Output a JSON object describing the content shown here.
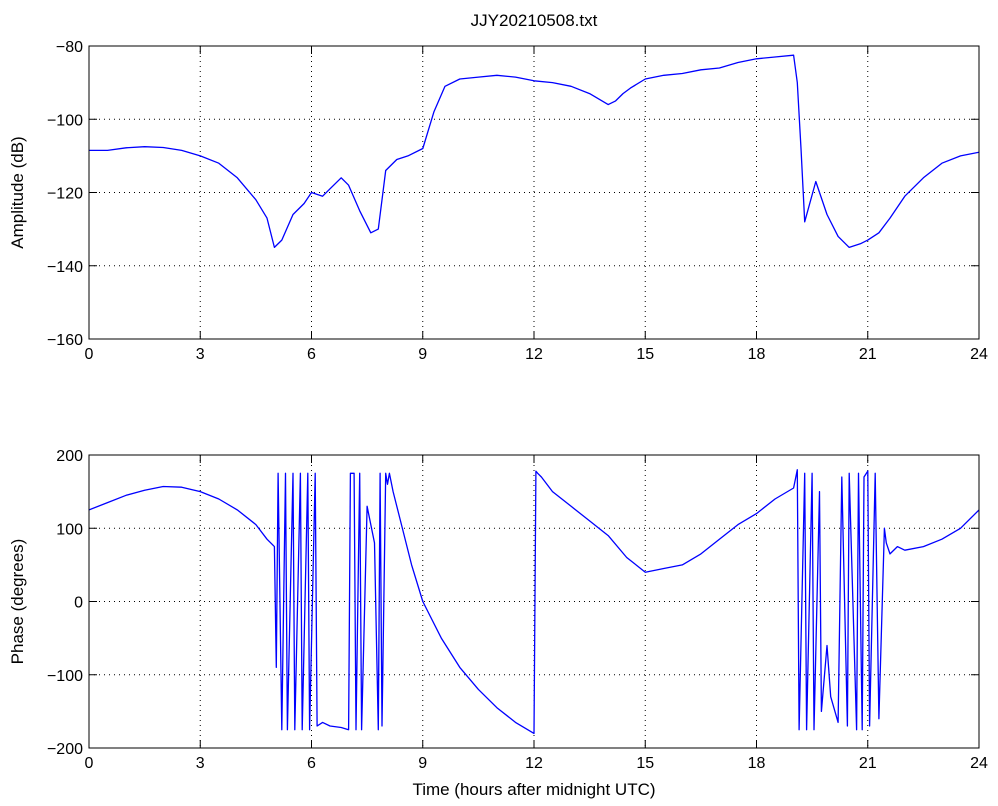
{
  "chart_data": [
    {
      "type": "line",
      "title": "JJY20210508.txt",
      "xlabel": "",
      "ylabel": "Amplitude (dB)",
      "xlim": [
        0,
        24
      ],
      "ylim": [
        -160,
        -80
      ],
      "xticks": [
        "0",
        "3",
        "6",
        "9",
        "12",
        "15",
        "18",
        "21",
        "24"
      ],
      "yticks": [
        "−80",
        "−100",
        "−120",
        "−140",
        "−160"
      ],
      "grid": true,
      "color": "#0000ff",
      "series": [
        {
          "x": [
            0,
            0.5,
            1,
            1.5,
            2,
            2.5,
            3,
            3.5,
            4,
            4.5,
            4.8,
            5.0,
            5.2,
            5.5,
            5.8,
            6.0,
            6.3,
            6.5,
            6.8,
            7.0,
            7.3,
            7.6,
            7.8,
            8.0,
            8.3,
            8.6,
            9.0,
            9.3,
            9.6,
            10.0,
            10.5,
            11.0,
            11.5,
            12.0,
            12.5,
            13.0,
            13.5,
            14.0,
            14.2,
            14.4,
            14.6,
            15.0,
            15.5,
            16.0,
            16.5,
            17.0,
            17.5,
            18.0,
            18.5,
            19.0,
            19.1,
            19.2,
            19.3,
            19.6,
            19.9,
            20.2,
            20.5,
            20.8,
            21.0,
            21.3,
            21.6,
            22.0,
            22.5,
            23.0,
            23.5,
            24.0
          ],
          "y": [
            -108.5,
            -108.5,
            -107.8,
            -107.5,
            -107.7,
            -108.5,
            -110,
            -112,
            -116,
            -122,
            -127,
            -135,
            -133,
            -126,
            -123,
            -120,
            -121,
            -119,
            -116,
            -118,
            -125,
            -131,
            -130,
            -114,
            -111,
            -110,
            -108,
            -98,
            -91,
            -89,
            -88.5,
            -88,
            -88.5,
            -89.5,
            -90,
            -91,
            -93,
            -96,
            -95,
            -93,
            -91.5,
            -89,
            -88,
            -87.5,
            -86.5,
            -86,
            -84.5,
            -83.5,
            -83,
            -82.5,
            -90,
            -108,
            -128,
            -117,
            -126,
            -132,
            -135,
            -134,
            -133,
            -131,
            -127,
            -121,
            -116,
            -112,
            -110,
            -109
          ]
        }
      ]
    },
    {
      "type": "line",
      "title": "",
      "xlabel": "Time (hours after midnight UTC)",
      "ylabel": "Phase (degrees)",
      "xlim": [
        0,
        24
      ],
      "ylim": [
        -200,
        200
      ],
      "xticks": [
        "0",
        "3",
        "6",
        "9",
        "12",
        "15",
        "18",
        "21",
        "24"
      ],
      "yticks": [
        "200",
        "100",
        "0",
        "−100",
        "−200"
      ],
      "grid": true,
      "color": "#0000ff",
      "series": [
        {
          "x": [
            0,
            0.5,
            1,
            1.5,
            2,
            2.5,
            3,
            3.5,
            4,
            4.5,
            4.8,
            5.0,
            5.05,
            5.1,
            5.2,
            5.3,
            5.35,
            5.5,
            5.55,
            5.7,
            5.75,
            5.9,
            5.95,
            6.1,
            6.15,
            6.3,
            6.5,
            6.8,
            7.0,
            7.05,
            7.15,
            7.2,
            7.3,
            7.35,
            7.5,
            7.7,
            7.8,
            7.85,
            7.9,
            8.0,
            8.05,
            8.1,
            8.2,
            8.4,
            8.7,
            9.0,
            9.5,
            10.0,
            10.5,
            11.0,
            11.5,
            12.0,
            12.05,
            12.1,
            12.2,
            12.5,
            13.0,
            13.5,
            14.0,
            14.5,
            15.0,
            15.5,
            16.0,
            16.5,
            17.0,
            17.5,
            18.0,
            18.5,
            19.0,
            19.1,
            19.15,
            19.3,
            19.35,
            19.5,
            19.55,
            19.7,
            19.75,
            19.9,
            20.0,
            20.2,
            20.3,
            20.45,
            20.5,
            20.7,
            20.75,
            20.85,
            20.9,
            21.0,
            21.05,
            21.2,
            21.3,
            21.45,
            21.5,
            21.6,
            21.8,
            22.0,
            22.5,
            23.0,
            23.5,
            24.0
          ],
          "y": [
            125,
            135,
            145,
            152,
            157,
            156,
            150,
            140,
            125,
            105,
            85,
            75,
            -90,
            175,
            -175,
            175,
            -175,
            175,
            -175,
            175,
            -175,
            175,
            -175,
            175,
            -170,
            -165,
            -170,
            -172,
            -175,
            175,
            175,
            -175,
            175,
            -175,
            130,
            80,
            -175,
            175,
            -170,
            175,
            160,
            175,
            150,
            110,
            50,
            0,
            -50,
            -90,
            -120,
            -145,
            -165,
            -180,
            178,
            175,
            170,
            150,
            130,
            110,
            90,
            60,
            40,
            45,
            50,
            65,
            85,
            105,
            120,
            140,
            155,
            180,
            -175,
            175,
            -175,
            175,
            -175,
            150,
            -150,
            -60,
            -130,
            -165,
            170,
            -170,
            175,
            -175,
            175,
            -175,
            170,
            178,
            -170,
            175,
            -160,
            100,
            80,
            65,
            75,
            70,
            75,
            85,
            100,
            125
          ]
        }
      ]
    }
  ]
}
